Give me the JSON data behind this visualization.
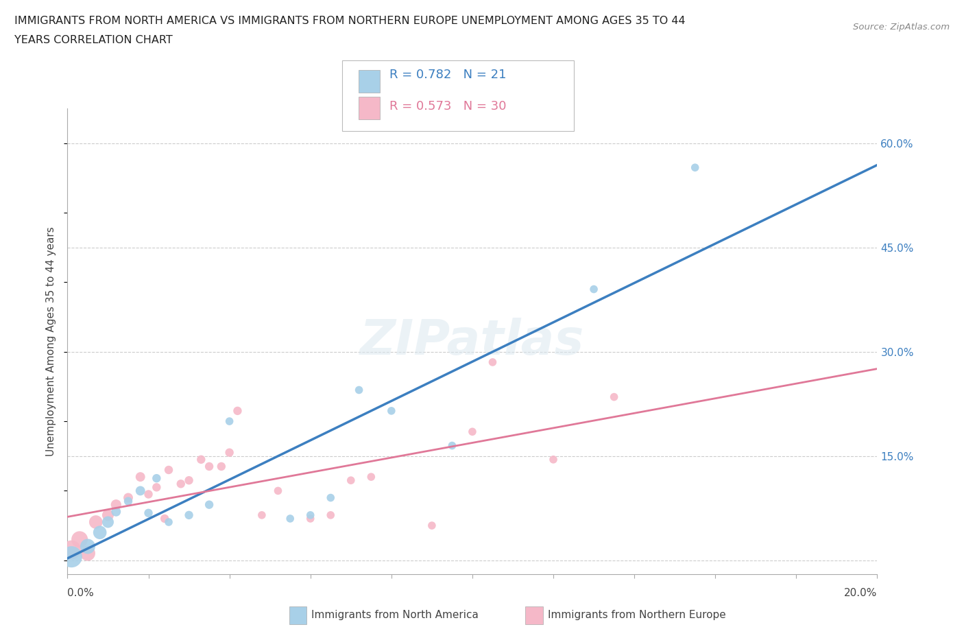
{
  "title_line1": "IMMIGRANTS FROM NORTH AMERICA VS IMMIGRANTS FROM NORTHERN EUROPE UNEMPLOYMENT AMONG AGES 35 TO 44",
  "title_line2": "YEARS CORRELATION CHART",
  "source_text": "Source: ZipAtlas.com",
  "ylabel": "Unemployment Among Ages 35 to 44 years",
  "x_min": 0.0,
  "x_max": 0.2,
  "y_min": -0.02,
  "y_max": 0.65,
  "y_ticks": [
    0.0,
    0.15,
    0.3,
    0.45,
    0.6
  ],
  "y_tick_labels": [
    "",
    "15.0%",
    "30.0%",
    "45.0%",
    "60.0%"
  ],
  "blue_color": "#a8d0e8",
  "pink_color": "#f5b8c8",
  "blue_line_color": "#3c7fc0",
  "pink_line_color": "#e07898",
  "R_blue": 0.782,
  "N_blue": 21,
  "R_pink": 0.573,
  "N_pink": 30,
  "legend_label_blue": "Immigrants from North America",
  "legend_label_pink": "Immigrants from Northern Europe",
  "watermark_text": "ZIPatlas",
  "north_america_x": [
    0.001,
    0.005,
    0.008,
    0.01,
    0.012,
    0.015,
    0.018,
    0.02,
    0.022,
    0.025,
    0.03,
    0.035,
    0.04,
    0.055,
    0.06,
    0.065,
    0.072,
    0.08,
    0.095,
    0.13,
    0.155
  ],
  "north_america_y": [
    0.005,
    0.02,
    0.04,
    0.055,
    0.07,
    0.085,
    0.1,
    0.068,
    0.118,
    0.055,
    0.065,
    0.08,
    0.2,
    0.06,
    0.065,
    0.09,
    0.245,
    0.215,
    0.165,
    0.39,
    0.565
  ],
  "north_america_size": [
    500,
    250,
    200,
    150,
    100,
    80,
    100,
    80,
    80,
    70,
    80,
    80,
    70,
    70,
    70,
    70,
    70,
    70,
    70,
    70,
    70
  ],
  "northern_europe_x": [
    0.001,
    0.003,
    0.005,
    0.007,
    0.01,
    0.012,
    0.015,
    0.018,
    0.02,
    0.022,
    0.024,
    0.025,
    0.028,
    0.03,
    0.033,
    0.035,
    0.038,
    0.04,
    0.042,
    0.048,
    0.052,
    0.06,
    0.065,
    0.07,
    0.075,
    0.09,
    0.1,
    0.105,
    0.12,
    0.135
  ],
  "northern_europe_y": [
    0.015,
    0.03,
    0.01,
    0.055,
    0.065,
    0.08,
    0.09,
    0.12,
    0.095,
    0.105,
    0.06,
    0.13,
    0.11,
    0.115,
    0.145,
    0.135,
    0.135,
    0.155,
    0.215,
    0.065,
    0.1,
    0.06,
    0.065,
    0.115,
    0.12,
    0.05,
    0.185,
    0.285,
    0.145,
    0.235
  ],
  "northern_europe_size": [
    400,
    300,
    250,
    200,
    150,
    120,
    100,
    100,
    80,
    80,
    80,
    80,
    80,
    80,
    80,
    80,
    80,
    80,
    80,
    70,
    70,
    70,
    70,
    70,
    70,
    70,
    70,
    70,
    70,
    70
  ]
}
